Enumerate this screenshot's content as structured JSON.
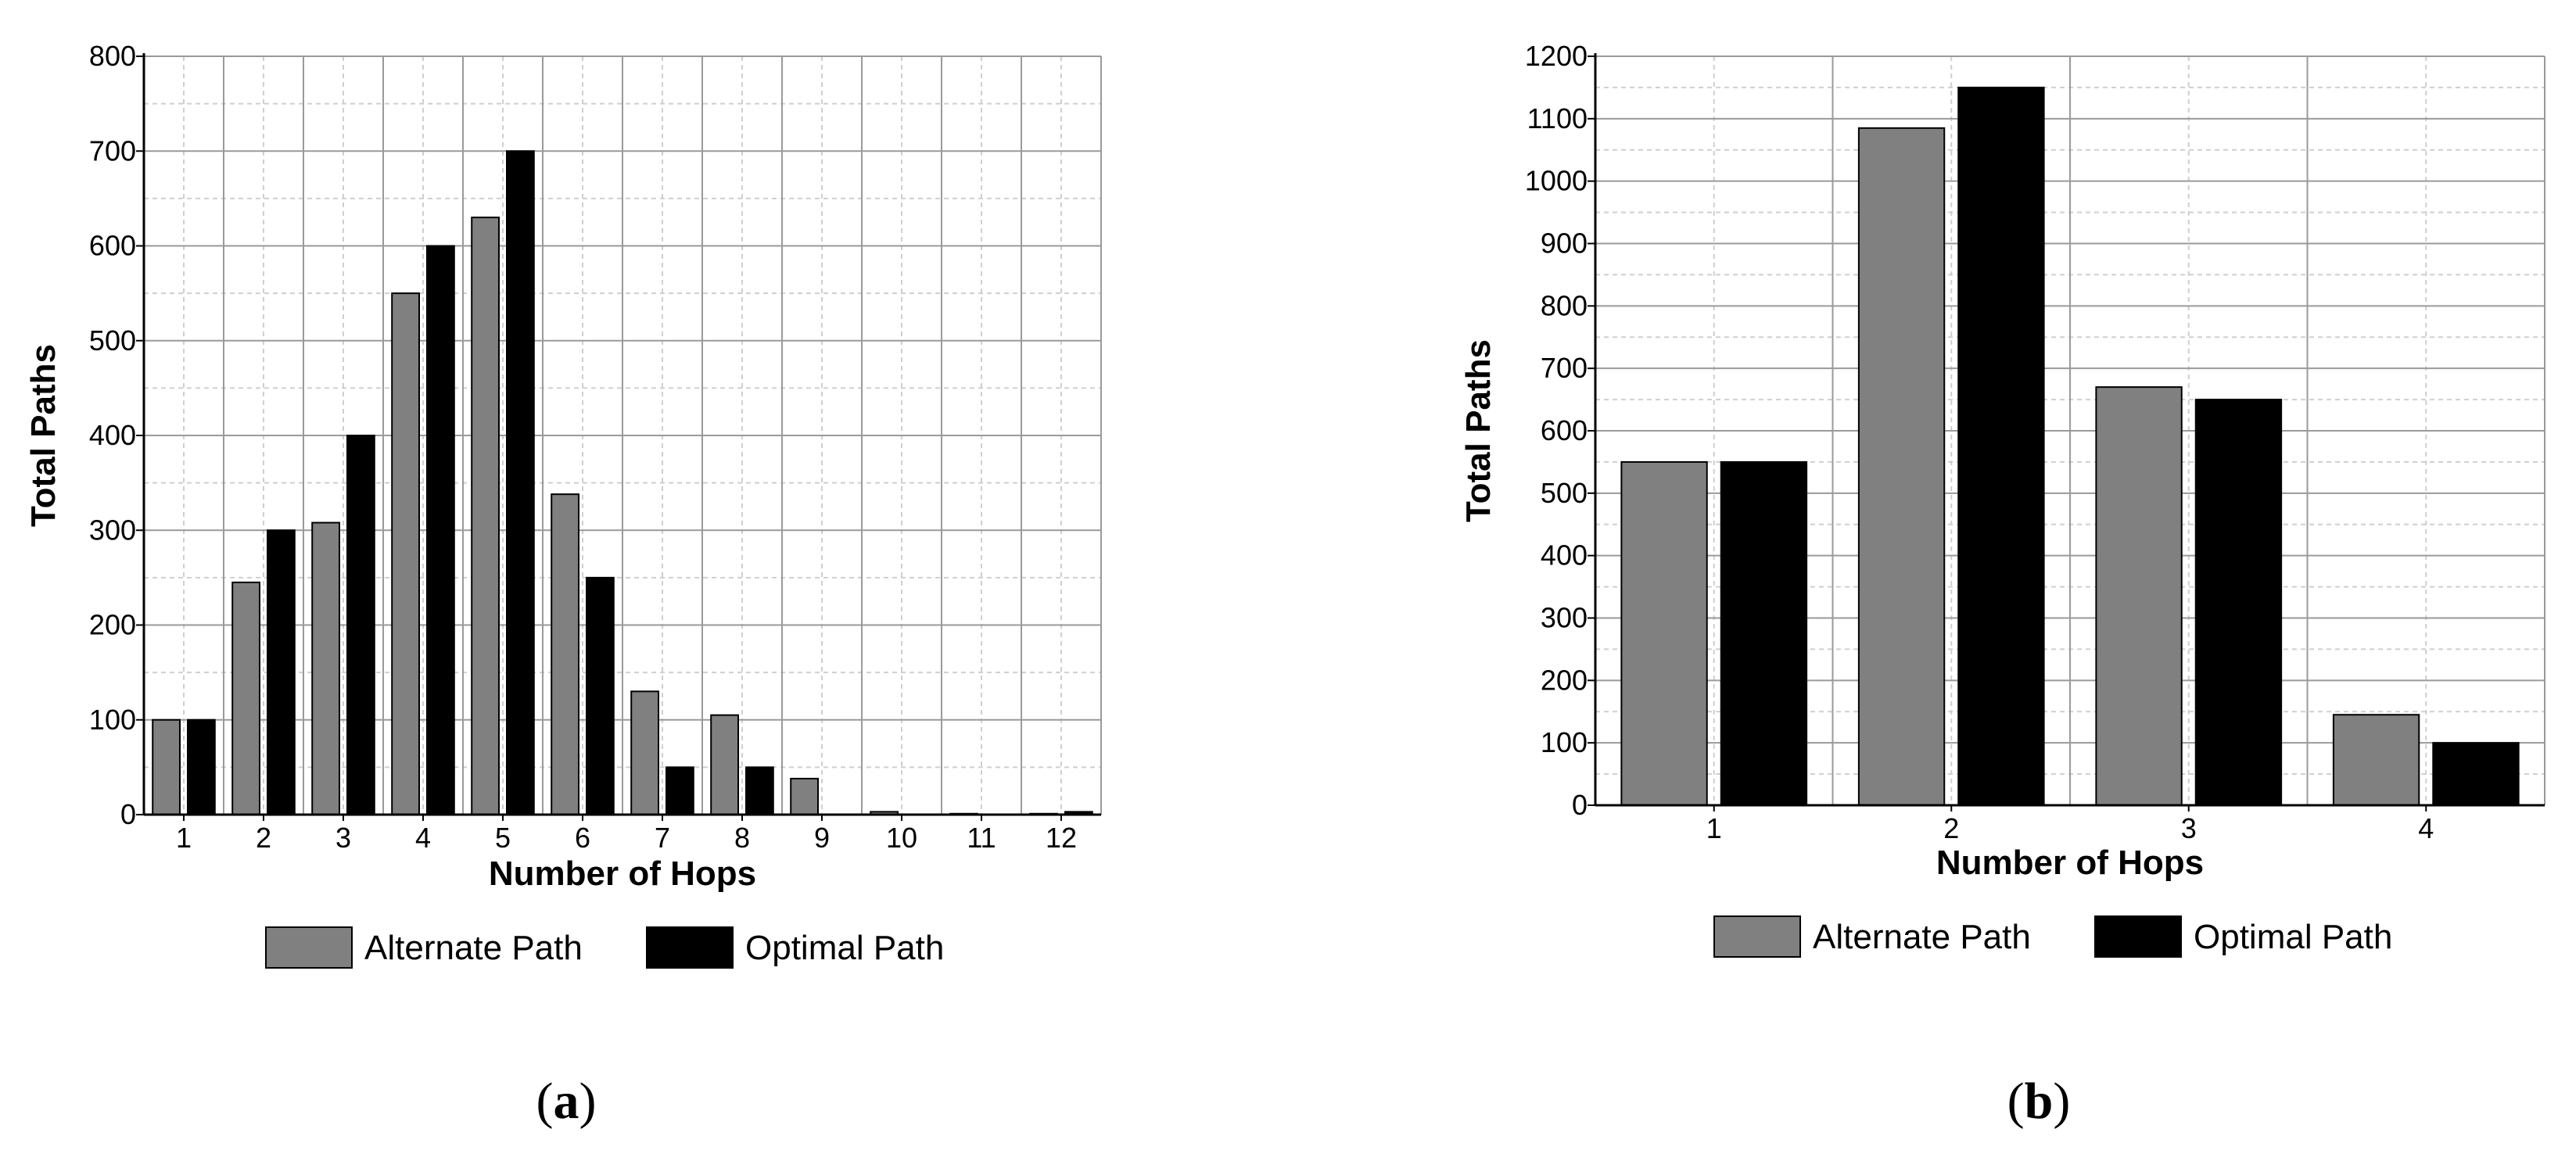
{
  "colors": {
    "alternate": "#808080",
    "optimal": "#000000"
  },
  "chart_data": [
    {
      "type": "bar",
      "panel_label": "a",
      "xlabel": "Number of Hops",
      "ylabel": "Total Paths",
      "categories": [
        "1",
        "2",
        "3",
        "4",
        "5",
        "6",
        "7",
        "8",
        "9",
        "10",
        "11",
        "12"
      ],
      "ylim": [
        0,
        800
      ],
      "yticks": [
        0,
        100,
        200,
        300,
        400,
        500,
        600,
        700,
        800
      ],
      "grid": true,
      "legend_position": "bottom",
      "series": [
        {
          "name": "Alternate Path",
          "values": [
            100,
            245,
            308,
            550,
            630,
            338,
            130,
            105,
            38,
            3,
            1,
            1
          ]
        },
        {
          "name": "Optimal Path",
          "values": [
            100,
            300,
            400,
            600,
            700,
            250,
            50,
            50,
            0,
            0,
            0,
            3
          ]
        }
      ]
    },
    {
      "type": "bar",
      "panel_label": "b",
      "xlabel": "Number of Hops",
      "ylabel": "Total Paths",
      "categories": [
        "1",
        "2",
        "3",
        "4"
      ],
      "ylim": [
        0,
        1200
      ],
      "yticks": [
        0,
        100,
        200,
        300,
        400,
        500,
        600,
        700,
        800,
        900,
        1000,
        1100,
        1200
      ],
      "grid": true,
      "legend_position": "bottom",
      "series": [
        {
          "name": "Alternate Path",
          "values": [
            550,
            1085,
            670,
            145
          ]
        },
        {
          "name": "Optimal Path",
          "values": [
            550,
            1150,
            650,
            100
          ]
        }
      ]
    }
  ]
}
